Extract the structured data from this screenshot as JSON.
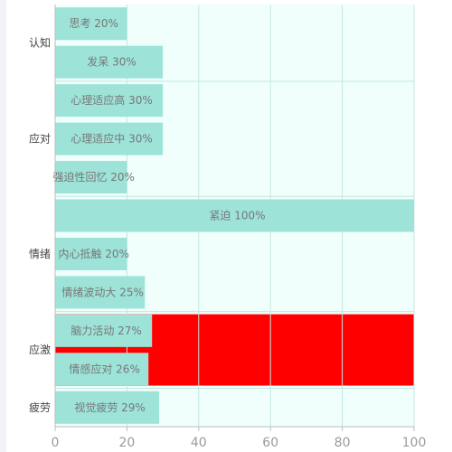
{
  "chart_data": {
    "type": "bar",
    "orientation": "horizontal",
    "xlim": [
      0,
      100
    ],
    "xticks": [
      0,
      20,
      40,
      60,
      80,
      100
    ],
    "grid": true,
    "colors": {
      "plot_background": "#f0fffc",
      "bar": "#9de3d8",
      "gridline": "#c4e6df",
      "highlight": "#ff0000"
    },
    "groups": [
      {
        "name": "认知",
        "bars": [
          {
            "label": "思考 20%",
            "value": 20
          },
          {
            "label": "发呆 30%",
            "value": 30
          }
        ]
      },
      {
        "name": "应对",
        "bars": [
          {
            "label": "心理适应高 30%",
            "value": 30
          },
          {
            "label": "心理适应中 30%",
            "value": 30
          },
          {
            "label": "强迫性回忆 20%",
            "value": 20
          }
        ]
      },
      {
        "name": "情绪",
        "bars": [
          {
            "label": "紧迫 100%",
            "value": 100
          },
          {
            "label": "内心抵触 20%",
            "value": 20
          },
          {
            "label": "情绪波动大 25%",
            "value": 25
          }
        ]
      },
      {
        "name": "应激",
        "highlighted": true,
        "bars": [
          {
            "label": "脑力活动 27%",
            "value": 27
          },
          {
            "label": "情感应对 26%",
            "value": 26
          }
        ]
      },
      {
        "name": "疲劳",
        "bars": [
          {
            "label": "视觉疲劳 29%",
            "value": 29
          }
        ]
      }
    ]
  }
}
